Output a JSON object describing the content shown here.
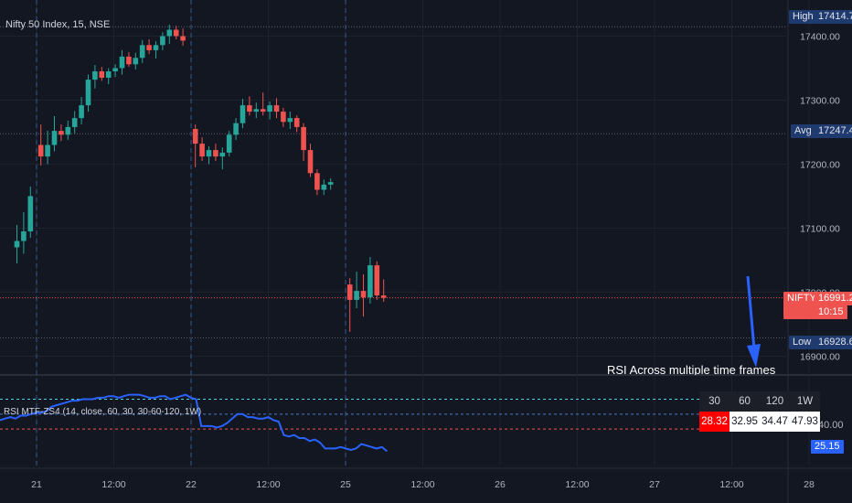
{
  "title": "Nifty 50 Index, 15, NSE",
  "rsi_label": "RSI MTF-ZS4 (14, close, 60, 30, 30-60-120, 1W)",
  "annotation": "RSI Across multiple time frames",
  "price_tags": {
    "high": {
      "label": "High",
      "value": "17414.70"
    },
    "avg": {
      "label": "Avg",
      "value": "17247.45"
    },
    "nifty": {
      "label": "NIFTY",
      "value": "16991.25",
      "sub": "10:15"
    },
    "low": {
      "label": "Low",
      "value": "16928.60"
    },
    "rsi40": {
      "value": "40.00"
    },
    "rsi_now": {
      "value": "25.15"
    }
  },
  "rsi_table": {
    "headers": [
      "30",
      "60",
      "120",
      "1W"
    ],
    "values": [
      "28.32",
      "32.95",
      "34.47",
      "47.93"
    ]
  },
  "colors": {
    "up": "#26a69a",
    "down": "#ef5350",
    "rsi": "#2962ff",
    "arrow": "#2962ff",
    "bg": "#131722"
  },
  "chart_data": [
    {
      "type": "candlestick",
      "x_ticks": [
        "21",
        "12:00",
        "22",
        "12:00",
        "25",
        "12:00",
        "26",
        "12:00",
        "27",
        "12:00",
        "28"
      ],
      "y_ticks": [
        "17400.00",
        "17300.00",
        "17200.00",
        "17100.00",
        "17000.00",
        "16900.00"
      ],
      "ylim": [
        16885,
        17445
      ],
      "reference_lines": {
        "high": 17414.7,
        "avg": 17247.45,
        "last": 16991.25,
        "low": 16928.6
      },
      "session_dividers": [
        "21",
        "22",
        "25"
      ],
      "days": [
        {
          "day": "20",
          "ohlc": [
            [
              17070,
              17105,
              17045,
              17080
            ],
            [
              17080,
              17125,
              17060,
              17095
            ],
            [
              17095,
              17165,
              17085,
              17150
            ]
          ]
        },
        {
          "day": "21",
          "ohlc": [
            [
              17230,
              17262,
              17198,
              17212
            ],
            [
              17212,
              17252,
              17200,
              17230
            ],
            [
              17230,
              17275,
              17220,
              17252
            ],
            [
              17252,
              17262,
              17236,
              17246
            ],
            [
              17246,
              17268,
              17238,
              17258
            ],
            [
              17258,
              17283,
              17248,
              17272
            ],
            [
              17272,
              17305,
              17262,
              17292
            ],
            [
              17292,
              17340,
              17282,
              17332
            ],
            [
              17332,
              17355,
              17318,
              17345
            ],
            [
              17345,
              17352,
              17330,
              17335
            ],
            [
              17335,
              17350,
              17325,
              17345
            ],
            [
              17345,
              17356,
              17336,
              17350
            ],
            [
              17350,
              17378,
              17340,
              17368
            ],
            [
              17368,
              17375,
              17352,
              17356
            ],
            [
              17356,
              17374,
              17348,
              17366
            ],
            [
              17366,
              17394,
              17358,
              17386
            ],
            [
              17386,
              17395,
              17372,
              17378
            ],
            [
              17378,
              17392,
              17365,
              17386
            ],
            [
              17386,
              17406,
              17378,
              17400
            ],
            [
              17400,
              17418,
              17388,
              17410
            ],
            [
              17410,
              17416,
              17395,
              17400
            ],
            [
              17400,
              17412,
              17385,
              17393
            ]
          ]
        },
        {
          "day": "22",
          "ohlc": [
            [
              17255,
              17262,
              17195,
              17232
            ],
            [
              17232,
              17242,
              17205,
              17212
            ],
            [
              17212,
              17228,
              17200,
              17222
            ],
            [
              17222,
              17232,
              17205,
              17212
            ],
            [
              17212,
              17226,
              17192,
              17218
            ],
            [
              17218,
              17252,
              17212,
              17246
            ],
            [
              17246,
              17272,
              17238,
              17264
            ],
            [
              17264,
              17302,
              17256,
              17292
            ],
            [
              17292,
              17306,
              17276,
              17282
            ],
            [
              17282,
              17296,
              17272,
              17286
            ],
            [
              17286,
              17312,
              17276,
              17282
            ],
            [
              17282,
              17298,
              17270,
              17292
            ],
            [
              17292,
              17303,
              17272,
              17282
            ],
            [
              17282,
              17288,
              17258,
              17266
            ],
            [
              17266,
              17282,
              17255,
              17272
            ],
            [
              17272,
              17276,
              17250,
              17258
            ],
            [
              17258,
              17264,
              17205,
              17222
            ],
            [
              17222,
              17232,
              17180,
              17186
            ],
            [
              17186,
              17192,
              17152,
              17160
            ],
            [
              17160,
              17176,
              17152,
              17168
            ],
            [
              17168,
              17178,
              17160,
              17172
            ]
          ]
        },
        {
          "day": "25",
          "ohlc": [
            [
              17012,
              17022,
              16938,
              16988
            ],
            [
              16988,
              17032,
              16975,
              17002
            ],
            [
              17002,
              17028,
              16962,
              16992
            ],
            [
              16992,
              17055,
              16982,
              17042
            ],
            [
              17042,
              17048,
              16988,
              16995
            ],
            [
              16995,
              17020,
              16985,
              16991.25
            ]
          ]
        }
      ]
    },
    {
      "type": "line",
      "name": "RSI MTF-ZS4",
      "levels": [
        60,
        50,
        40
      ],
      "level_labels": [
        "40.00"
      ],
      "last": 25.15,
      "ylim": [
        15,
        75
      ],
      "values": [
        46,
        47,
        48,
        47,
        49,
        49,
        50,
        51,
        51,
        52,
        55,
        56,
        57,
        58,
        59,
        59,
        60,
        60,
        60,
        61,
        61,
        62,
        62,
        61,
        62,
        63,
        63,
        63,
        62,
        61,
        61,
        62,
        62,
        60,
        61,
        62,
        63,
        61,
        60,
        42,
        42,
        42,
        41,
        42,
        44,
        47,
        50,
        50,
        48,
        48,
        47,
        47,
        48,
        46,
        45,
        36,
        35,
        36,
        34,
        34,
        32,
        33,
        31,
        27,
        27,
        27,
        28,
        27,
        26,
        27,
        30,
        29,
        28,
        27,
        28,
        25.15
      ]
    }
  ]
}
